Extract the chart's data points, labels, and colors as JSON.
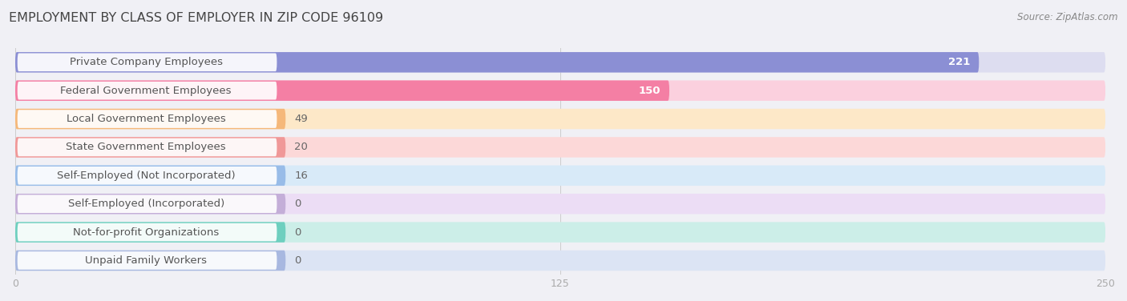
{
  "title": "EMPLOYMENT BY CLASS OF EMPLOYER IN ZIP CODE 96109",
  "source": "Source: ZipAtlas.com",
  "categories": [
    "Private Company Employees",
    "Federal Government Employees",
    "Local Government Employees",
    "State Government Employees",
    "Self-Employed (Not Incorporated)",
    "Self-Employed (Incorporated)",
    "Not-for-profit Organizations",
    "Unpaid Family Workers"
  ],
  "values": [
    221,
    150,
    49,
    20,
    16,
    0,
    0,
    0
  ],
  "bar_colors": [
    "#8b8fd4",
    "#f47fa4",
    "#f5b87a",
    "#f09898",
    "#98bce8",
    "#c4aed8",
    "#6ecfbf",
    "#a8b8e0"
  ],
  "bar_bg_colors": [
    "#ddddf0",
    "#fbd0de",
    "#fde8c8",
    "#fcd8d8",
    "#d8eaf8",
    "#ecddf5",
    "#cceee8",
    "#dce4f4"
  ],
  "xlim": [
    0,
    250
  ],
  "xticks": [
    0,
    125,
    250
  ],
  "value_label_color_inside": "#ffffff",
  "value_label_color_outside": "#666666",
  "title_fontsize": 11.5,
  "source_fontsize": 8.5,
  "bar_label_fontsize": 9.5,
  "value_fontsize": 9.5,
  "background_color": "#f0f0f5",
  "label_box_color": "#ffffff",
  "label_text_color": "#555555"
}
